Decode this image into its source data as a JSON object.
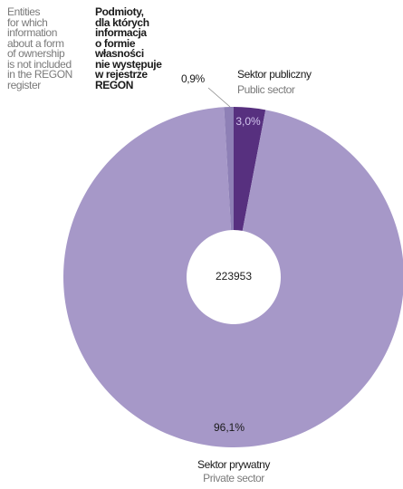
{
  "chart_data": {
    "type": "donut",
    "categories": [
      "Sektor publiczny",
      "Sektor prywatny",
      "Podmioty,\ndla których\ninformacja\no formie\nwłasności\nnie występuje\nw rejestrze\nREGON"
    ],
    "categories_en": [
      "Public sector",
      "Private sector",
      "Entities\nfor which\ninformation\nabout a form\nof ownership\nis not included\nin the REGON\nregister"
    ],
    "values": [
      3.0,
      96.1,
      0.9
    ],
    "value_labels": [
      "3,0%",
      "96,1%",
      "0,9%"
    ],
    "colors": [
      "#57307f",
      "#a698c8",
      "#8e80b6"
    ],
    "total": 223953
  }
}
